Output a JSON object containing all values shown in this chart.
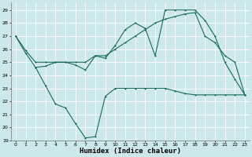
{
  "xlabel": "Humidex (Indice chaleur)",
  "background_color": "#cce8ea",
  "grid_color": "#ffffff",
  "line_color": "#1a6b5a",
  "xlim": [
    -0.5,
    23.5
  ],
  "ylim": [
    19,
    29.6
  ],
  "yticks": [
    19,
    20,
    21,
    22,
    23,
    24,
    25,
    26,
    27,
    28,
    29
  ],
  "xticks": [
    0,
    1,
    2,
    3,
    4,
    5,
    6,
    7,
    8,
    9,
    10,
    11,
    12,
    13,
    14,
    15,
    16,
    17,
    18,
    19,
    20,
    21,
    22,
    23
  ],
  "line1_x": [
    0,
    1,
    2,
    3,
    4,
    5,
    6,
    7,
    8,
    9,
    10,
    11,
    12,
    13,
    14,
    15,
    16,
    17,
    18,
    19,
    20,
    21,
    22,
    23
  ],
  "line1_y": [
    27.0,
    25.7,
    24.6,
    24.7,
    25.0,
    25.0,
    24.8,
    24.4,
    25.5,
    25.3,
    26.3,
    27.5,
    28.0,
    27.6,
    25.5,
    29.0,
    29.0,
    29.0,
    29.0,
    28.2,
    27.0,
    25.0,
    23.7,
    22.5
  ],
  "line2_x": [
    0,
    1,
    2,
    3,
    4,
    5,
    6,
    7,
    8,
    9,
    10,
    11,
    12,
    13,
    14,
    15,
    16,
    17,
    18,
    19,
    20,
    21,
    22,
    23
  ],
  "line2_y": [
    27.0,
    25.9,
    25.0,
    25.0,
    25.0,
    25.0,
    25.0,
    25.0,
    25.5,
    25.5,
    26.0,
    26.5,
    27.0,
    27.5,
    28.0,
    28.3,
    28.5,
    28.7,
    28.8,
    27.0,
    26.5,
    25.5,
    25.0,
    22.5
  ],
  "line3_x": [
    2,
    3,
    4,
    5,
    6,
    7,
    8,
    9,
    10,
    11,
    12,
    13,
    14,
    15,
    16,
    17,
    18,
    19,
    20,
    21,
    22,
    23
  ],
  "line3_y": [
    24.6,
    23.2,
    21.8,
    21.5,
    20.3,
    19.2,
    19.3,
    22.4,
    23.0,
    23.0,
    23.0,
    23.0,
    23.0,
    23.0,
    22.8,
    22.6,
    22.5,
    22.5,
    22.5,
    22.5,
    22.5,
    22.5
  ]
}
